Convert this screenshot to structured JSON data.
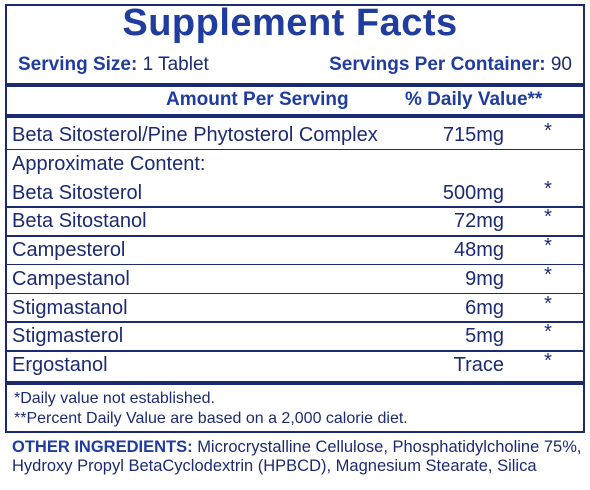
{
  "title": "Supplement Facts",
  "serving_size": {
    "label": "Serving Size:",
    "value": "1 Tablet"
  },
  "servings_per_container": {
    "label": "Servings Per Container:",
    "value": "90"
  },
  "header": {
    "amount": "Amount Per Serving",
    "daily_value": "% Daily Value**"
  },
  "rows": [
    {
      "name": "Beta Sitosterol/Pine Phytosterol Complex",
      "amount": "715mg",
      "daily_value": "*"
    },
    {
      "name": "Approximate Content:"
    },
    {
      "name": "Beta Sitosterol",
      "amount": "500mg",
      "daily_value": "*"
    },
    {
      "name": "Beta Sitostanol",
      "amount": "72mg",
      "daily_value": "*"
    },
    {
      "name": "Campesterol",
      "amount": "48mg",
      "daily_value": "*"
    },
    {
      "name": "Campestanol",
      "amount": "9mg",
      "daily_value": "*"
    },
    {
      "name": "Stigmastanol",
      "amount": "6mg",
      "daily_value": "*"
    },
    {
      "name": "Stigmasterol",
      "amount": "5mg",
      "daily_value": "*"
    },
    {
      "name": "Ergostanol",
      "amount": "Trace",
      "daily_value": "*"
    }
  ],
  "footnotes": [
    "*Daily value not established.",
    "**Percent Daily Value are based on a 2,000 calorie diet."
  ],
  "other_ingredients": {
    "label": "OTHER INGREDIENTS:",
    "text": "Microcrystalline Cellulose, Phosphatidylcholine 75%, Hydroxy Propyl BetaCyclodextrin (HPBCD), Magnesium Stearate, Silica"
  }
}
